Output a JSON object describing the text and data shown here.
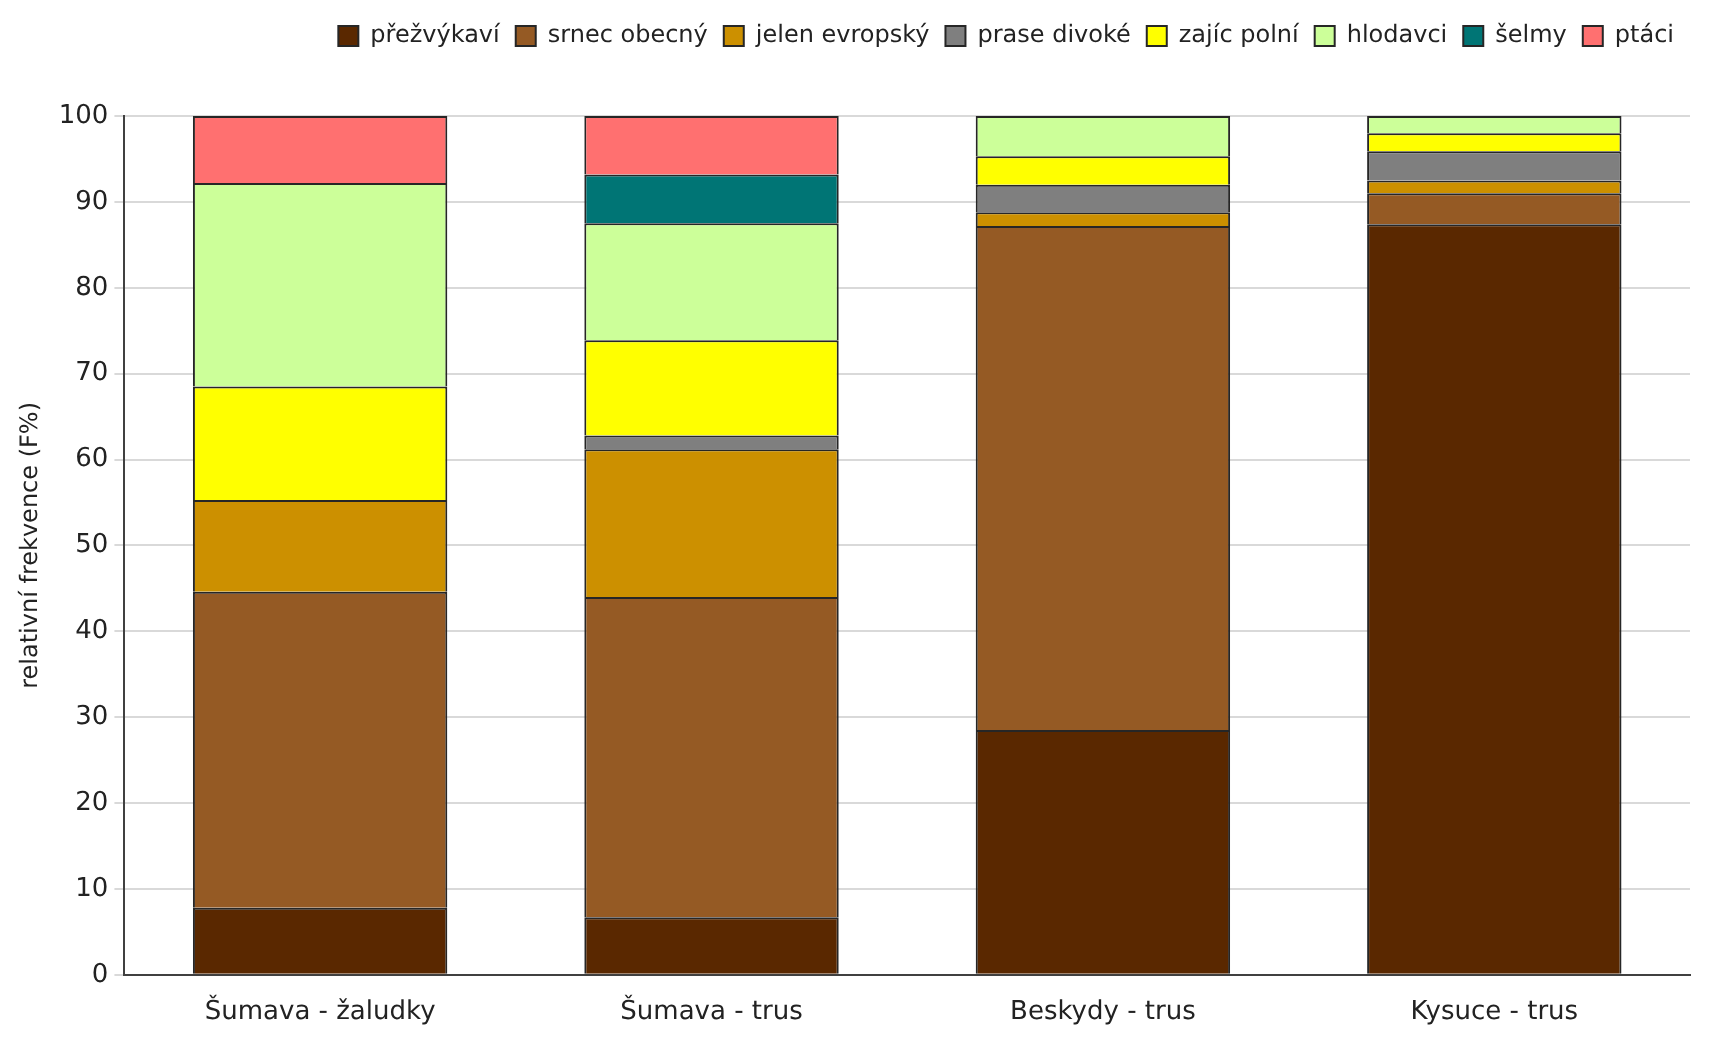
{
  "chart_data": {
    "type": "bar",
    "stacked": true,
    "ylabel": "relativní frekvence (F%)",
    "categories": [
      "Šumava - žaludky",
      "Šumava - trus",
      "Beskydy - trus",
      "Kysuce - trus"
    ],
    "series": [
      {
        "name": "přežvýkaví",
        "color": "#5a2800",
        "values": [
          7.8,
          6.7,
          28.5,
          87.4
        ]
      },
      {
        "name": "srnec obecný",
        "color": "#955a24",
        "values": [
          36.8,
          37.3,
          58.7,
          3.6
        ]
      },
      {
        "name": "jelen evropský",
        "color": "#cc9000",
        "values": [
          10.7,
          17.2,
          1.6,
          1.5
        ]
      },
      {
        "name": "prase divoké",
        "color": "#7f7f7f",
        "values": [
          0,
          1.6,
          3.2,
          3.4
        ]
      },
      {
        "name": "zajíc polní",
        "color": "#ffff00",
        "values": [
          13.2,
          11.1,
          3.3,
          2.1
        ]
      },
      {
        "name": "hlodavci",
        "color": "#ccff99",
        "values": [
          23.7,
          13.6,
          4.7,
          2.0
        ]
      },
      {
        "name": "šelmy",
        "color": "#007575",
        "values": [
          0,
          5.7,
          0,
          0
        ]
      },
      {
        "name": "ptáci",
        "color": "#ff7070",
        "values": [
          7.8,
          6.8,
          0,
          0
        ]
      }
    ],
    "ylim": [
      0,
      100
    ],
    "yticks": [
      0,
      10,
      20,
      30,
      40,
      50,
      60,
      70,
      80,
      90,
      100
    ],
    "grid": "y",
    "legend": "top"
  }
}
